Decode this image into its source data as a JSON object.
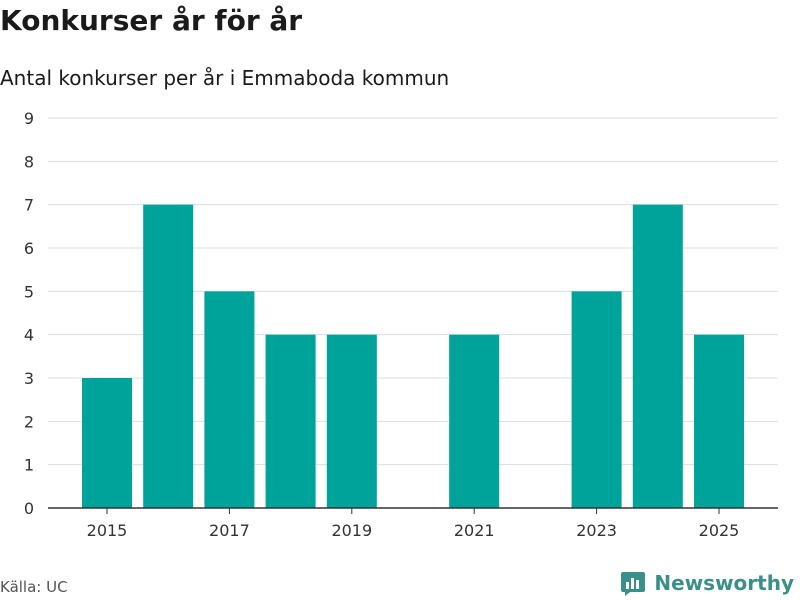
{
  "header": {
    "title": "Konkurser år för år",
    "subtitle": "Antal konkurser per år i Emmaboda kommun"
  },
  "footer": {
    "source": "Källa: UC",
    "brand": "Newsworthy",
    "brand_icon": "newsworthy-logo-icon"
  },
  "colors": {
    "bar": "#00a39a",
    "grid": "#dddddd",
    "axis": "#333333",
    "brand": "#3a9088"
  },
  "chart_data": {
    "type": "bar",
    "title": "Konkurser år för år",
    "subtitle": "Antal konkurser per år i Emmaboda kommun",
    "categories": [
      "2015",
      "2016",
      "2017",
      "2018",
      "2019",
      "2020",
      "2021",
      "2022",
      "2023",
      "2024",
      "2025"
    ],
    "values": [
      3,
      7,
      5,
      4,
      4,
      0,
      4,
      0,
      5,
      7,
      4
    ],
    "x_tick_labels": [
      "2015",
      "2017",
      "2019",
      "2021",
      "2023",
      "2025"
    ],
    "y_ticks": [
      0,
      1,
      2,
      3,
      4,
      5,
      6,
      7,
      8,
      9
    ],
    "ylim": [
      0,
      9
    ],
    "xlabel": "",
    "ylabel": "",
    "grid": true
  }
}
